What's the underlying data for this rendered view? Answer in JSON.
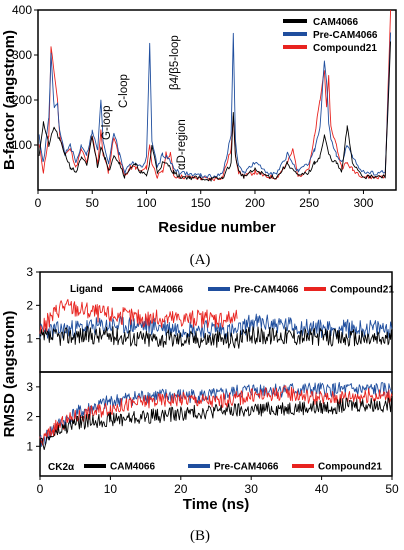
{
  "colors": {
    "CAM4066": "#000000",
    "Pre-CAM4066": "#1f4e9e",
    "Compound21": "#e8231f"
  },
  "chart_data": [
    {
      "type": "line",
      "panel": "(A)",
      "xlabel": "Residue number",
      "ylabel": "B-factor (angstrom)",
      "xlim": [
        0,
        330
      ],
      "ylim": [
        0,
        400
      ],
      "xticks": [
        0,
        50,
        100,
        150,
        200,
        250,
        300
      ],
      "yticks": [
        100,
        200,
        300,
        400
      ],
      "legend_position": "top-right",
      "annotations": [
        "G-loop",
        "C-loop",
        "β4/β5-loop",
        "αD-region"
      ],
      "series": [
        {
          "name": "CAM4066",
          "x": [
            1,
            5,
            10,
            15,
            20,
            25,
            30,
            35,
            40,
            45,
            50,
            55,
            58,
            62,
            65,
            70,
            75,
            80,
            85,
            90,
            95,
            100,
            103,
            105,
            110,
            115,
            120,
            125,
            130,
            140,
            150,
            160,
            170,
            178,
            180,
            182,
            185,
            190,
            200,
            210,
            220,
            230,
            240,
            250,
            255,
            260,
            264,
            266,
            268,
            270,
            275,
            280,
            285,
            290,
            300,
            310,
            320,
            325
          ],
          "y": [
            80,
            150,
            100,
            140,
            110,
            80,
            50,
            40,
            70,
            55,
            120,
            50,
            100,
            70,
            40,
            80,
            60,
            30,
            50,
            55,
            40,
            30,
            60,
            100,
            40,
            60,
            55,
            40,
            30,
            28,
            26,
            24,
            26,
            60,
            170,
            80,
            40,
            30,
            45,
            32,
            28,
            60,
            30,
            40,
            60,
            75,
            120,
            100,
            80,
            70,
            60,
            40,
            140,
            60,
            30,
            28,
            30,
            330
          ]
        },
        {
          "name": "Pre-CAM4066",
          "x": [
            1,
            5,
            10,
            12,
            15,
            18,
            20,
            25,
            30,
            35,
            40,
            45,
            50,
            55,
            58,
            60,
            65,
            70,
            75,
            80,
            85,
            90,
            95,
            100,
            103,
            105,
            110,
            115,
            120,
            125,
            130,
            140,
            150,
            160,
            170,
            178,
            180,
            182,
            185,
            190,
            200,
            210,
            220,
            230,
            240,
            250,
            255,
            260,
            264,
            266,
            268,
            270,
            275,
            280,
            285,
            290,
            300,
            310,
            320,
            325
          ],
          "y": [
            120,
            60,
            160,
            300,
            180,
            190,
            130,
            80,
            100,
            60,
            100,
            80,
            130,
            90,
            200,
            110,
            60,
            130,
            80,
            40,
            60,
            60,
            50,
            70,
            330,
            110,
            50,
            80,
            70,
            50,
            40,
            35,
            32,
            30,
            35,
            120,
            345,
            110,
            50,
            40,
            60,
            42,
            35,
            80,
            40,
            60,
            90,
            140,
            290,
            240,
            150,
            110,
            80,
            60,
            100,
            70,
            40,
            38,
            40,
            350
          ]
        },
        {
          "name": "Compound21",
          "x": [
            1,
            5,
            10,
            12,
            15,
            18,
            20,
            25,
            30,
            35,
            40,
            45,
            50,
            55,
            58,
            60,
            65,
            70,
            75,
            80,
            85,
            90,
            95,
            100,
            103,
            105,
            110,
            115,
            118,
            120,
            122,
            125,
            130,
            140,
            150,
            160,
            170,
            178,
            180,
            182,
            185,
            190,
            200,
            210,
            220,
            230,
            235,
            240,
            250,
            255,
            260,
            264,
            266,
            268,
            270,
            275,
            280,
            285,
            290,
            300,
            310,
            320,
            325
          ],
          "y": [
            100,
            40,
            120,
            315,
            260,
            200,
            120,
            80,
            90,
            50,
            90,
            60,
            120,
            60,
            130,
            80,
            40,
            120,
            70,
            30,
            50,
            50,
            40,
            50,
            100,
            60,
            30,
            40,
            80,
            70,
            85,
            30,
            30,
            28,
            26,
            24,
            28,
            90,
            160,
            80,
            40,
            30,
            40,
            30,
            28,
            60,
            90,
            30,
            50,
            120,
            200,
            270,
            180,
            250,
            140,
            100,
            50,
            60,
            45,
            30,
            28,
            30,
            400
          ]
        }
      ]
    },
    {
      "type": "line",
      "panel": "(B) top",
      "tag": "Ligand",
      "xlim": [
        0,
        50
      ],
      "ylim": [
        0,
        3
      ],
      "yticks": [
        1,
        2,
        3
      ],
      "legend_position": "top",
      "series": [
        {
          "name": "CAM4066",
          "x": [
            0,
            5,
            10,
            15,
            20,
            25,
            28,
            30,
            35,
            40,
            45,
            50
          ],
          "y": [
            1.0,
            1.1,
            1.1,
            1.0,
            1.0,
            1.0,
            0.95,
            1.1,
            1.1,
            1.05,
            1.0,
            1.0
          ]
        },
        {
          "name": "Pre-CAM4066",
          "x": [
            0,
            5,
            10,
            15,
            20,
            25,
            28,
            30,
            35,
            40,
            45,
            50
          ],
          "y": [
            1.2,
            1.3,
            1.4,
            1.4,
            1.3,
            1.3,
            1.2,
            1.5,
            1.4,
            1.3,
            1.3,
            1.3
          ]
        },
        {
          "name": "Compound21",
          "x": [
            0,
            3,
            5,
            10,
            15,
            20,
            25,
            28
          ],
          "y": [
            1.2,
            2.0,
            1.9,
            1.7,
            1.6,
            1.6,
            1.6,
            1.6
          ]
        }
      ]
    },
    {
      "type": "line",
      "panel": "(B) bottom",
      "tag": "CK2α",
      "xlabel": "Time (ns)",
      "xlim": [
        0,
        50
      ],
      "ylim": [
        0,
        3.5
      ],
      "yticks": [
        1,
        2,
        3
      ],
      "xticks": [
        0,
        10,
        20,
        30,
        40,
        50
      ],
      "legend_position": "bottom",
      "series": [
        {
          "name": "CAM4066",
          "x": [
            0,
            2,
            5,
            10,
            15,
            20,
            25,
            30,
            35,
            40,
            45,
            50
          ],
          "y": [
            1.0,
            1.4,
            1.8,
            1.9,
            2.0,
            2.1,
            2.2,
            2.2,
            2.3,
            2.3,
            2.4,
            2.4
          ]
        },
        {
          "name": "Pre-CAM4066",
          "x": [
            0,
            2,
            5,
            10,
            15,
            20,
            25,
            30,
            35,
            40,
            45,
            50
          ],
          "y": [
            1.1,
            1.6,
            2.1,
            2.5,
            2.7,
            2.7,
            2.7,
            2.9,
            2.9,
            2.9,
            2.9,
            2.9
          ]
        },
        {
          "name": "Compound21",
          "x": [
            0,
            2,
            5,
            10,
            15,
            20,
            25,
            30,
            35,
            40,
            45,
            50
          ],
          "y": [
            1.1,
            1.6,
            2.0,
            2.3,
            2.5,
            2.6,
            2.5,
            2.7,
            2.8,
            2.6,
            2.7,
            2.7
          ]
        }
      ]
    }
  ],
  "labels": {
    "A": {
      "ylabel": "B-factor (angstrom)",
      "xlabel": "Residue number",
      "panel": "(A)"
    },
    "B": {
      "ylabel": "RMSD (angstrom)",
      "xlabel": "Time (ns)",
      "panel": "(B)",
      "top_tag": "Ligand",
      "bottom_tag": "CK2α"
    }
  }
}
